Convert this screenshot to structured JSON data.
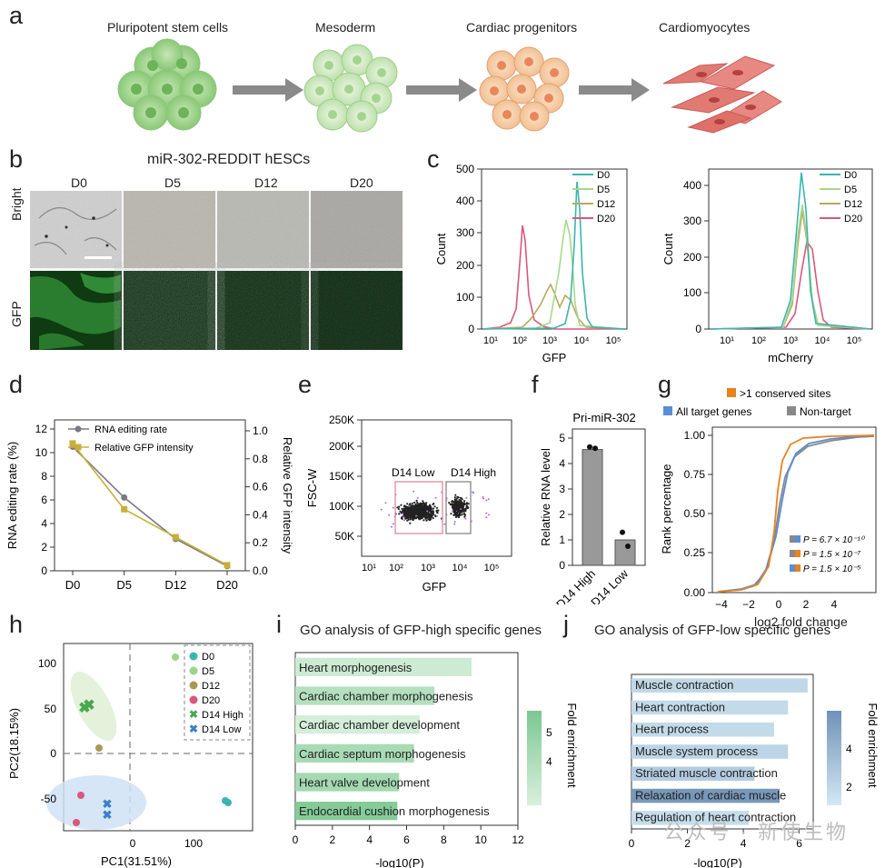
{
  "panel_letters": {
    "a": "a",
    "b": "b",
    "c": "c",
    "d": "d",
    "e": "e",
    "f": "f",
    "g": "g",
    "h": "h",
    "i": "i",
    "j": "j"
  },
  "panel_a": {
    "stages": [
      "Pluripotent stem cells",
      "Mesoderm",
      "Cardiac progenitors",
      "Cardiomyocytes"
    ]
  },
  "panel_b": {
    "title": "miR-302-REDDIT hESCs",
    "days": [
      "D0",
      "D5",
      "D12",
      "D20"
    ],
    "rows": [
      "Bright",
      "GFP"
    ]
  },
  "panel_c": {
    "left": {
      "xlabel": "GFP",
      "ylabel": "Count",
      "yticks": [
        "0",
        "100",
        "200",
        "300",
        "400",
        "500"
      ],
      "xticks": [
        "10¹",
        "10²",
        "10³",
        "10⁴",
        "10⁵"
      ]
    },
    "right": {
      "xlabel": "mCherry",
      "ylabel": "Count",
      "yticks": [
        "0",
        "100",
        "200",
        "300",
        "400"
      ],
      "xticks": [
        "10¹",
        "10²",
        "10³",
        "10⁴",
        "10⁵"
      ]
    },
    "legend": [
      "D0",
      "D5",
      "D12",
      "D20"
    ],
    "colors": {
      "D0": "#3bb5b0",
      "D5": "#a8d88a",
      "D12": "#b8a860",
      "D20": "#d9587a"
    }
  },
  "chart_data": [
    {
      "type": "line",
      "title": "",
      "xlabel": "",
      "ylabel": "RNA editing rate (%)",
      "ylabel_right": "Relative GFP intensity",
      "categories": [
        "D0",
        "D5",
        "D12",
        "D20"
      ],
      "ylim": [
        0,
        12
      ],
      "ylim_right": [
        0,
        1.0
      ],
      "yticks": [
        "0",
        "2",
        "4",
        "6",
        "8",
        "10",
        "12"
      ],
      "yticks_right": [
        "0.0",
        "0.2",
        "0.4",
        "0.6",
        "0.8",
        "1.0"
      ],
      "series": [
        {
          "name": "RNA editing rate",
          "axis": "left",
          "values": [
            10.5,
            6.2,
            2.7,
            0.4
          ],
          "color": "#7a7a85"
        },
        {
          "name": "Relative GFP intensity",
          "axis": "right",
          "values": [
            0.91,
            0.44,
            0.24,
            0.04
          ],
          "color": "#c8b038"
        }
      ]
    },
    {
      "type": "bar",
      "title": "Pri-miR-302",
      "ylabel": "Relative RNA level",
      "categories": [
        "D14 High",
        "D14 Low"
      ],
      "values": [
        4.55,
        1.0
      ],
      "points": [
        [
          4.65,
          4.6
        ],
        [
          1.3,
          0.75
        ]
      ],
      "ylim": [
        0,
        5
      ],
      "yticks": [
        "0",
        "1",
        "2",
        "3",
        "4",
        "5"
      ]
    },
    {
      "type": "bar",
      "title": "GO analysis of GFP-high specific genes",
      "xlabel": "-log10(P)",
      "categories": [
        "Heart morphogenesis",
        "Cardiac chamber morphogenesis",
        "Cardiac chamber development",
        "Cardiac septum morphogenesis",
        "Heart valve development",
        "Endocardial cushion morphogenesis"
      ],
      "values": [
        9.5,
        7.5,
        6.7,
        6.4,
        5.6,
        5.5
      ],
      "fold_enrichment": [
        3.6,
        4.2,
        3.4,
        4.5,
        4.6,
        5.4
      ],
      "xlim": [
        0,
        12
      ],
      "xticks": [
        "0",
        "2",
        "4",
        "6",
        "8",
        "10",
        "12"
      ],
      "colorbar": {
        "label": "Fold enrichment",
        "ticks": [
          "4",
          "5"
        ]
      }
    },
    {
      "type": "bar",
      "title": "GO analysis of GFP-low specific genes",
      "xlabel": "-log10(P)",
      "categories": [
        "Muscle contraction",
        "Heart contraction",
        "Heart process",
        "Muscle system process",
        "Striated muscle contraction",
        "Relaxation of cardiac muscle",
        "Regulation of heart contraction"
      ],
      "values": [
        6.3,
        5.6,
        5.1,
        5.6,
        4.4,
        5.3,
        4.2
      ],
      "fold_enrichment": [
        2.4,
        2.3,
        2.3,
        2.5,
        2.8,
        4.6,
        2.2
      ],
      "xlim": [
        0,
        6.5
      ],
      "xticks": [
        "0",
        "2",
        "4",
        "6"
      ],
      "colorbar": {
        "label": "Fold enrichment",
        "ticks": [
          "2",
          "4"
        ]
      }
    },
    {
      "type": "scatter",
      "xlabel": "PC1(31.51%)",
      "ylabel": "PC2(18.15%)",
      "xticks": [
        "0",
        "100"
      ],
      "yticks": [
        "-50",
        "0",
        "50",
        "100"
      ],
      "legend": [
        "D0",
        "D5",
        "D12",
        "D20",
        "D14 High",
        "D14 Low"
      ]
    }
  ],
  "panel_e": {
    "ylabel": "FSC-W",
    "xlabel": "GFP",
    "yticks": [
      "50K",
      "100K",
      "150K",
      "200K",
      "250K"
    ],
    "xticks": [
      "10¹",
      "10²",
      "10³",
      "10⁴",
      "10⁵"
    ],
    "gate_low": "D14 Low",
    "gate_high": "D14 High"
  },
  "panel_g": {
    "legend": [
      ">1 conserved sites",
      "All target genes",
      "Non-target"
    ],
    "ylabel": "Rank percentage",
    "xlabel": "log2 fold change",
    "yticks": [
      "0.00",
      "0.25",
      "0.50",
      "0.75",
      "1.00"
    ],
    "xticks": [
      "−4",
      "−2",
      "0",
      "2",
      "4"
    ],
    "pvals": [
      "P = 6.7 × 10⁻¹⁰",
      "P = 1.5 × 10⁻⁷",
      "P = 1.5 × 10⁻⁵"
    ]
  },
  "watermark": "公众号 · 新使生物"
}
